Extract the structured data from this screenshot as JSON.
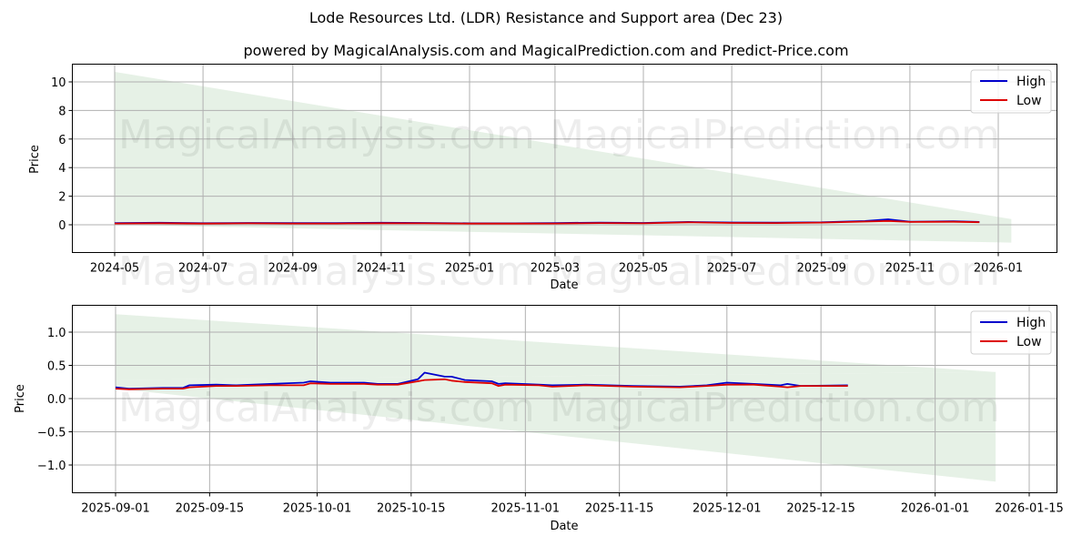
{
  "header": {
    "title": "Lode Resources Ltd. (LDR) Resistance and Support area (Dec 23)",
    "subtitle": "powered by MagicalAnalysis.com and MagicalPrediction.com and Predict-Price.com"
  },
  "watermarks": [
    "MagicalAnalysis.com",
    "MagicalPrediction.com"
  ],
  "colors": {
    "high": "#0000cc",
    "low": "#dd0000",
    "band": "#e3f0e3",
    "grid": "#b0b0b0"
  },
  "legend": {
    "high": "High",
    "low": "Low"
  },
  "chart_data": [
    {
      "type": "line",
      "title": "Lode Resources Ltd. (LDR) Resistance and Support area (Dec 23)",
      "xlabel": "Date",
      "ylabel": "Price",
      "ylim": [
        -2,
        11.2
      ],
      "yticks": [
        "0",
        "2",
        "4",
        "6",
        "8",
        "10"
      ],
      "xticks": [
        "2024-05",
        "2024-07",
        "2024-09",
        "2024-11",
        "2025-01",
        "2025-03",
        "2025-05",
        "2025-07",
        "2025-09",
        "2025-11",
        "2026-01"
      ],
      "grid": true,
      "legend_position": "upper right",
      "x": [
        "2024-05-01",
        "2024-06-01",
        "2024-07-01",
        "2024-08-01",
        "2024-09-01",
        "2024-10-01",
        "2024-11-01",
        "2024-12-01",
        "2025-01-01",
        "2025-02-01",
        "2025-03-01",
        "2025-04-01",
        "2025-05-01",
        "2025-06-01",
        "2025-07-01",
        "2025-08-01",
        "2025-09-01",
        "2025-10-01",
        "2025-10-17",
        "2025-11-01",
        "2025-12-01",
        "2025-12-19"
      ],
      "series": [
        {
          "name": "High",
          "values": [
            0.12,
            0.14,
            0.11,
            0.13,
            0.12,
            0.12,
            0.14,
            0.13,
            0.1,
            0.1,
            0.12,
            0.15,
            0.13,
            0.2,
            0.16,
            0.15,
            0.17,
            0.26,
            0.38,
            0.21,
            0.24,
            0.2
          ]
        },
        {
          "name": "Low",
          "values": [
            0.09,
            0.11,
            0.08,
            0.1,
            0.09,
            0.09,
            0.11,
            0.1,
            0.08,
            0.08,
            0.09,
            0.12,
            0.1,
            0.17,
            0.13,
            0.12,
            0.15,
            0.22,
            0.27,
            0.2,
            0.21,
            0.18
          ]
        }
      ],
      "band": {
        "name": "Resistance/Support area",
        "start": "2024-05-01",
        "end": "2026-01-10",
        "upper_start": 10.7,
        "upper_end": 0.4,
        "lower_start": 0.0,
        "lower_end": -1.25
      }
    },
    {
      "type": "line",
      "title": "",
      "xlabel": "Date",
      "ylabel": "Price",
      "ylim": [
        -1.4,
        1.4
      ],
      "yticks": [
        "1.0",
        "0.5",
        "0.0",
        "-0.5",
        "-1.0"
      ],
      "xticks": [
        "2025-09-01",
        "2025-09-15",
        "2025-10-01",
        "2025-10-15",
        "2025-11-01",
        "2025-11-15",
        "2025-12-01",
        "2025-12-15",
        "2026-01-01",
        "2026-01-15"
      ],
      "grid": true,
      "legend_position": "upper right",
      "x": [
        "2025-09-01",
        "2025-09-03",
        "2025-09-08",
        "2025-09-11",
        "2025-09-12",
        "2025-09-16",
        "2025-09-19",
        "2025-09-24",
        "2025-09-29",
        "2025-09-30",
        "2025-10-03",
        "2025-10-08",
        "2025-10-10",
        "2025-10-13",
        "2025-10-16",
        "2025-10-17",
        "2025-10-20",
        "2025-10-21",
        "2025-10-23",
        "2025-10-27",
        "2025-10-28",
        "2025-10-29",
        "2025-11-03",
        "2025-11-05",
        "2025-11-10",
        "2025-11-17",
        "2025-11-24",
        "2025-11-28",
        "2025-12-01",
        "2025-12-05",
        "2025-12-09",
        "2025-12-10",
        "2025-12-12",
        "2025-12-19"
      ],
      "series": [
        {
          "name": "High",
          "values": [
            0.17,
            0.15,
            0.16,
            0.16,
            0.2,
            0.21,
            0.2,
            0.22,
            0.24,
            0.26,
            0.24,
            0.24,
            0.22,
            0.22,
            0.29,
            0.39,
            0.33,
            0.33,
            0.28,
            0.26,
            0.22,
            0.23,
            0.21,
            0.2,
            0.21,
            0.19,
            0.18,
            0.2,
            0.24,
            0.22,
            0.2,
            0.22,
            0.19,
            0.2
          ]
        },
        {
          "name": "Low",
          "values": [
            0.15,
            0.14,
            0.15,
            0.15,
            0.17,
            0.19,
            0.19,
            0.2,
            0.2,
            0.23,
            0.22,
            0.22,
            0.21,
            0.21,
            0.26,
            0.28,
            0.29,
            0.27,
            0.25,
            0.23,
            0.19,
            0.21,
            0.2,
            0.18,
            0.2,
            0.18,
            0.17,
            0.19,
            0.21,
            0.21,
            0.18,
            0.17,
            0.19,
            0.19
          ]
        }
      ],
      "bands": [
        {
          "name": "Resistance area",
          "start": "2025-09-01",
          "end": "2026-01-10",
          "upper_start": 1.27,
          "upper_end": 0.4,
          "lower_start": 0.28,
          "lower_end": 0.4
        },
        {
          "name": "Support area",
          "start": "2025-09-01",
          "end": "2026-01-10",
          "upper_start": 0.28,
          "upper_end": 0.4,
          "lower_start": 0.15,
          "lower_end": -1.25
        }
      ]
    }
  ]
}
